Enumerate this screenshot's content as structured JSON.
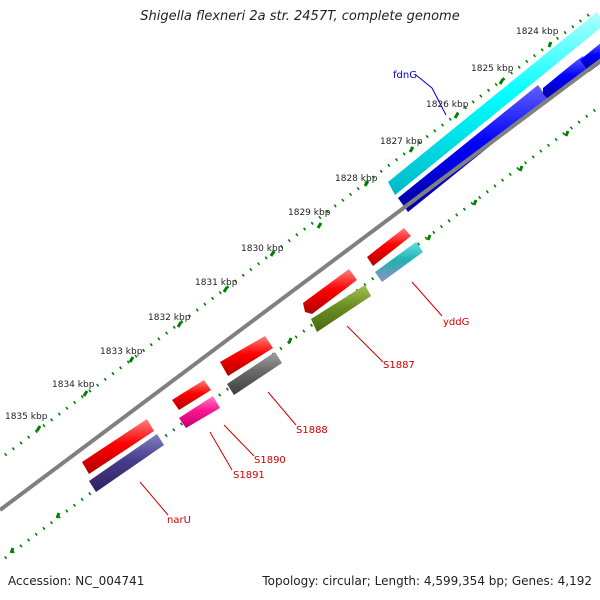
{
  "title": "Shigella flexneri 2a str. 2457T, complete genome",
  "footer": {
    "accession": "Accession: NC_004741",
    "summary": "Topology: circular; Length: 4,599,354 bp; Genes: 4,192"
  },
  "ticks": [
    "1824 kbp",
    "1825 kbp",
    "1826 kbp",
    "1827 kbp",
    "1828 kbp",
    "1829 kbp",
    "1830 kbp",
    "1831 kbp",
    "1832 kbp",
    "1833 kbp",
    "1834 kbp",
    "1835 kbp"
  ],
  "genes": [
    {
      "label": "fdnG",
      "color": "#0000cc"
    },
    {
      "label": "yddG",
      "color": "#d00000"
    },
    {
      "label": "S1887",
      "color": "#d00000"
    },
    {
      "label": "S1888",
      "color": "#d00000"
    },
    {
      "label": "S1890",
      "color": "#d00000"
    },
    {
      "label": "S1891",
      "color": "#d00000"
    },
    {
      "label": "narU",
      "color": "#d00000"
    }
  ],
  "colors": {
    "backbone": "#808080",
    "tick": "#008000",
    "forward_cds": "#ff0000",
    "reverse_cds": "#0000ff",
    "fdnG_feature": "#00ffff",
    "yddG_feature": "#20b2b2",
    "S1887_feature": "#6b8e23",
    "S1888_feature": "#696969",
    "S1890_feature": "#ff1493",
    "narU_feature": "#483d8b"
  }
}
